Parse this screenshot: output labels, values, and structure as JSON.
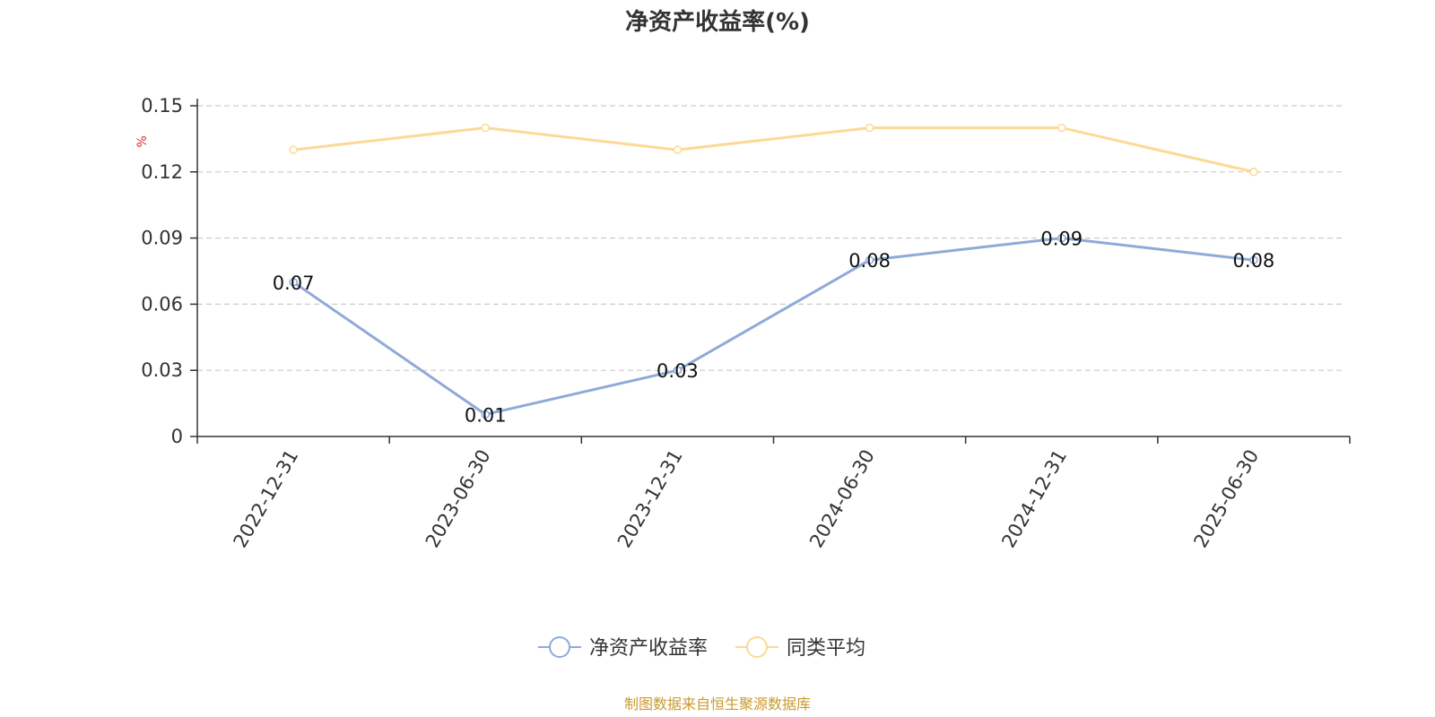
{
  "title": "净资产收益率(%)",
  "source": "制图数据来自恒生聚源数据库",
  "colors": {
    "series_main": "#8eaad8",
    "series_avg": "#fcd995",
    "unit": "#e8262a",
    "source": "#c99a2e",
    "grid": "#cccccc",
    "axis": "#333333"
  },
  "chart_data": {
    "type": "line",
    "title": "净资产收益率(%)",
    "ylabel": "%",
    "xlabel": "",
    "ylim": [
      0,
      0.15
    ],
    "yticks": [
      "0",
      "0.03",
      "0.06",
      "0.09",
      "0.12",
      "0.15"
    ],
    "ytick_values": [
      0,
      0.03,
      0.06,
      0.09,
      0.12,
      0.15
    ],
    "categories": [
      "2022-12-31",
      "2023-06-30",
      "2023-12-31",
      "2024-06-30",
      "2024-12-31",
      "2025-06-30"
    ],
    "grid": true,
    "grid_style": "dashed-horizontal",
    "legend_position": "bottom",
    "series": [
      {
        "name": "净资产收益率",
        "values": [
          0.07,
          0.01,
          0.03,
          0.08,
          0.09,
          0.08
        ],
        "labels": [
          "0.07",
          "0.01",
          "0.03",
          "0.08",
          "0.09",
          "0.08"
        ],
        "color": "#8eaad8"
      },
      {
        "name": "同类平均",
        "values": [
          0.13,
          0.14,
          0.13,
          0.14,
          0.14,
          0.12
        ],
        "color": "#fcd995"
      }
    ]
  }
}
